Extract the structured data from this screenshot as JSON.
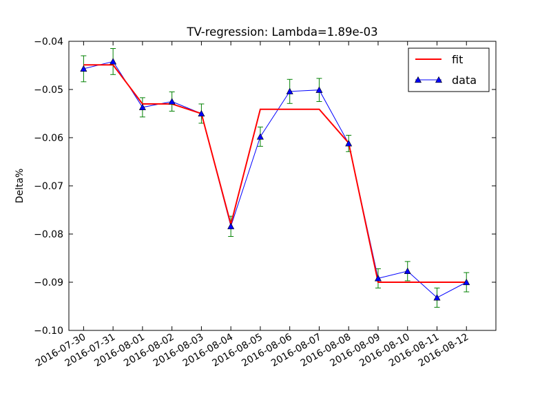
{
  "chart_data": {
    "type": "line",
    "title": "TV-regression: Lambda=1.89e-03",
    "xlabel": "",
    "ylabel": "Delta%",
    "ylim": [
      -0.1,
      -0.04
    ],
    "yticks": [
      -0.04,
      -0.05,
      -0.06,
      -0.07,
      -0.08,
      -0.09,
      -0.1
    ],
    "ytick_labels": [
      "−0.04",
      "−0.05",
      "−0.06",
      "−0.07",
      "−0.08",
      "−0.09",
      "−0.10"
    ],
    "categories": [
      "2016-07-30",
      "2016-07-31",
      "2016-08-01",
      "2016-08-02",
      "2016-08-03",
      "2016-08-04",
      "2016-08-05",
      "2016-08-06",
      "2016-08-07",
      "2016-08-08",
      "2016-08-09",
      "2016-08-10",
      "2016-08-11",
      "2016-08-12"
    ],
    "grid": false,
    "legend": "upper-right",
    "series": [
      {
        "name": "fit",
        "color": "#ff0000",
        "marker": "none",
        "values": [
          -0.0449,
          -0.0449,
          -0.053,
          -0.053,
          -0.055,
          -0.078,
          -0.0541,
          -0.0541,
          -0.0541,
          -0.0611,
          -0.09,
          -0.09,
          -0.09,
          -0.09
        ]
      },
      {
        "name": "data",
        "color": "#0000ff",
        "marker": "triangle",
        "values": [
          -0.0457,
          -0.0442,
          -0.0537,
          -0.0525,
          -0.055,
          -0.0784,
          -0.0598,
          -0.0504,
          -0.0501,
          -0.0612,
          -0.0892,
          -0.0877,
          -0.0932,
          -0.09
        ],
        "errors": [
          0.0027,
          0.0027,
          0.002,
          0.002,
          0.002,
          0.0021,
          0.002,
          0.0025,
          0.0024,
          0.0017,
          0.002,
          0.002,
          0.002,
          0.002
        ],
        "error_color": "#008000"
      }
    ]
  }
}
